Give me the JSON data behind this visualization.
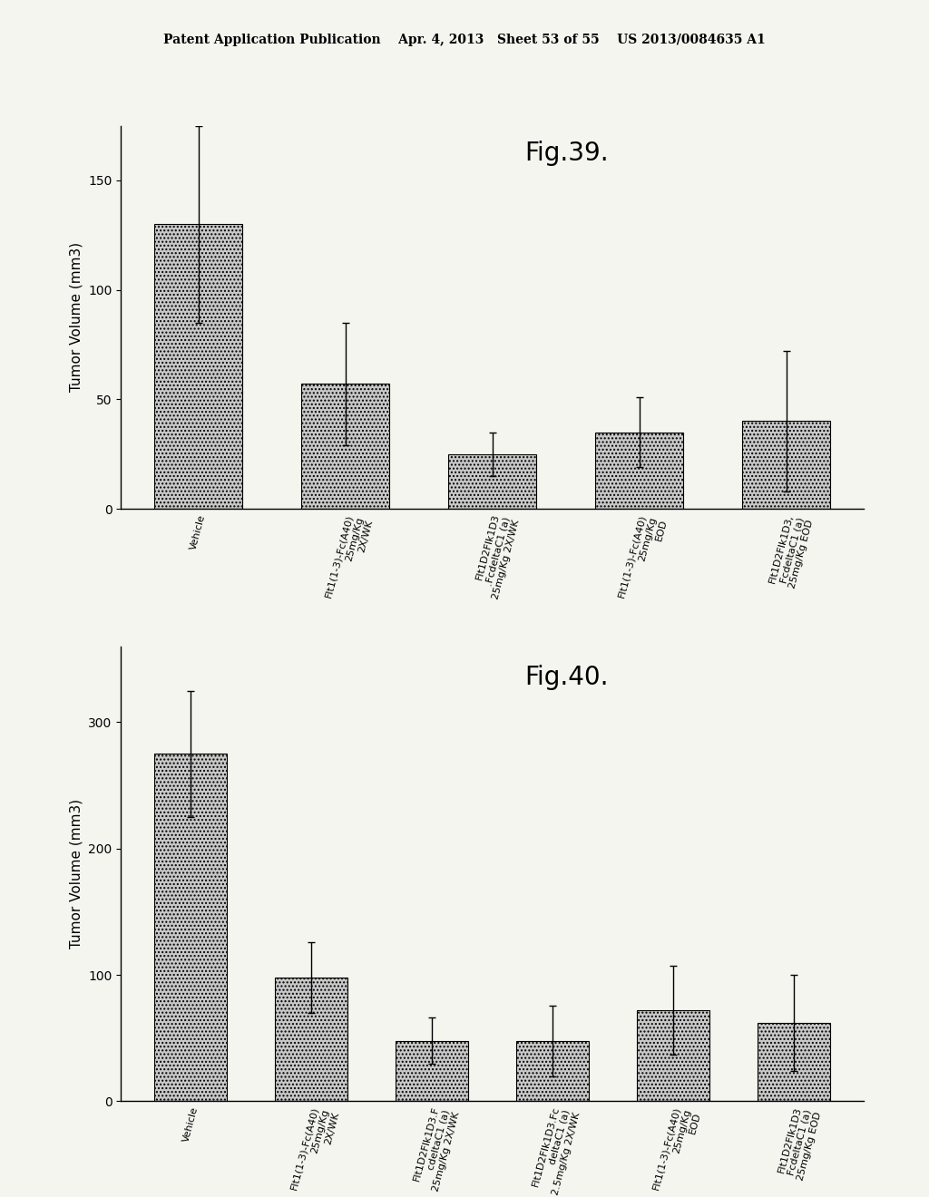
{
  "fig39": {
    "title": "Fig.39.",
    "ylabel": "Tumor Volume (mm3)",
    "ylim": [
      0,
      175
    ],
    "yticks": [
      0,
      50,
      100,
      150
    ],
    "categories": [
      "Vehicle",
      "Flt1(1-3)-Fc(A40)\n25mg/Kg\n2X/WK",
      "Flt1D2Flk1D3\n.FcdeltaC1 (a)\n25mg/Kg 2X/WK",
      "Flt1(1-3)-Fc(A40)\n25mg/Kg\nEOD",
      "Flt1D2Flk1D3,\nFcdeltaC1 (a)\n25mg/Kg EOD"
    ],
    "values": [
      130,
      57,
      25,
      35,
      40
    ],
    "errors": [
      45,
      28,
      10,
      16,
      32
    ],
    "bar_color": "#c8c8c8",
    "bar_hatch": "....",
    "bar_width": 0.6
  },
  "fig40": {
    "title": "Fig.40.",
    "ylabel": "Tumor Volume (mm3)",
    "ylim": [
      0,
      360
    ],
    "yticks": [
      0,
      100,
      200,
      300
    ],
    "categories": [
      "Vehicle",
      "Flt1(1-3)-Fc(A40)\n25mg/Kg\n2X/WK",
      "Flt1D2Flk1D3.F\ncdeltaC1 (a)\n25mg/Kg 2X/WK",
      "Flt1D2Flk1D3.Fc\ndeltaC1 (a)\n2.5mg/Kg 2X/WK",
      "Flt1(1-3)-Fc(A40)\n25mg/Kg\nEOD",
      "Flt1D2Flk1D3\nFcdeltaC1 (a)\n25mg/Kg EOD"
    ],
    "values": [
      275,
      98,
      48,
      48,
      72,
      62
    ],
    "errors": [
      50,
      28,
      18,
      28,
      35,
      38
    ],
    "bar_color": "#c8c8c8",
    "bar_hatch": "....",
    "bar_width": 0.6
  },
  "header_text": "Patent Application Publication    Apr. 4, 2013   Sheet 53 of 55    US 2013/0084635 A1",
  "bg_color": "#f5f5f0",
  "text_color": "#000000",
  "font_size_title": 20,
  "font_size_label": 11,
  "font_size_tick": 10,
  "font_size_header": 10,
  "tick_label_fontsize": 8
}
